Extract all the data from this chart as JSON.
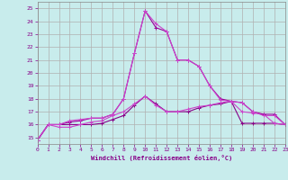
{
  "xlabel": "Windchill (Refroidissement éolien,°C)",
  "background_color": "#c8ecec",
  "grid_color": "#b0b0b0",
  "xlim": [
    0,
    23
  ],
  "ylim": [
    14.5,
    25.5
  ],
  "yticks": [
    15,
    16,
    17,
    18,
    19,
    20,
    21,
    22,
    23,
    24,
    25
  ],
  "xticks": [
    0,
    1,
    2,
    3,
    4,
    5,
    6,
    7,
    8,
    9,
    10,
    11,
    12,
    13,
    14,
    15,
    16,
    17,
    18,
    19,
    20,
    21,
    22,
    23
  ],
  "lines": [
    {
      "x": [
        0,
        1,
        2,
        3,
        4,
        5,
        6,
        7,
        8,
        9,
        10,
        11,
        12,
        13,
        14,
        15,
        16,
        17,
        18,
        19,
        20,
        21,
        22,
        23
      ],
      "y": [
        14.8,
        16.0,
        16.0,
        16.0,
        16.0,
        16.0,
        16.1,
        16.4,
        16.7,
        17.5,
        18.2,
        17.6,
        17.0,
        17.0,
        17.0,
        17.3,
        17.5,
        17.6,
        17.8,
        16.1,
        16.1,
        16.1,
        16.1,
        16.0
      ],
      "color": "#880088",
      "lw": 0.8
    },
    {
      "x": [
        0,
        1,
        2,
        3,
        4,
        5,
        6,
        7,
        8,
        9,
        10,
        11,
        12,
        13,
        14,
        15,
        16,
        17,
        18,
        19,
        20,
        21,
        22,
        23
      ],
      "y": [
        14.8,
        16.0,
        15.8,
        15.8,
        16.0,
        16.2,
        16.3,
        16.7,
        17.0,
        17.6,
        18.2,
        17.5,
        17.0,
        17.0,
        17.2,
        17.4,
        17.5,
        17.7,
        17.8,
        17.0,
        16.9,
        16.8,
        16.1,
        16.0
      ],
      "color": "#cc44cc",
      "lw": 0.8
    },
    {
      "x": [
        0,
        1,
        2,
        3,
        4,
        5,
        6,
        7,
        8,
        9,
        10,
        11,
        12,
        13,
        14,
        15,
        16,
        17,
        18,
        19,
        20,
        21,
        22,
        23
      ],
      "y": [
        14.8,
        16.0,
        16.0,
        16.2,
        16.3,
        16.5,
        16.5,
        16.8,
        18.0,
        21.5,
        24.8,
        23.5,
        23.2,
        21.0,
        21.0,
        20.5,
        19.0,
        18.0,
        17.8,
        17.7,
        17.0,
        16.8,
        16.8,
        16.0
      ],
      "color": "#990099",
      "lw": 0.8
    },
    {
      "x": [
        0,
        1,
        2,
        3,
        4,
        5,
        6,
        7,
        8,
        9,
        10,
        11,
        12,
        13,
        14,
        15,
        16,
        17,
        18,
        19,
        20,
        21,
        22,
        23
      ],
      "y": [
        14.8,
        16.0,
        16.0,
        16.3,
        16.4,
        16.5,
        16.5,
        16.8,
        18.0,
        21.5,
        24.8,
        23.8,
        23.2,
        21.0,
        21.0,
        20.5,
        19.0,
        17.9,
        17.8,
        17.7,
        17.0,
        16.7,
        16.7,
        16.0
      ],
      "color": "#cc44cc",
      "lw": 0.8
    }
  ]
}
